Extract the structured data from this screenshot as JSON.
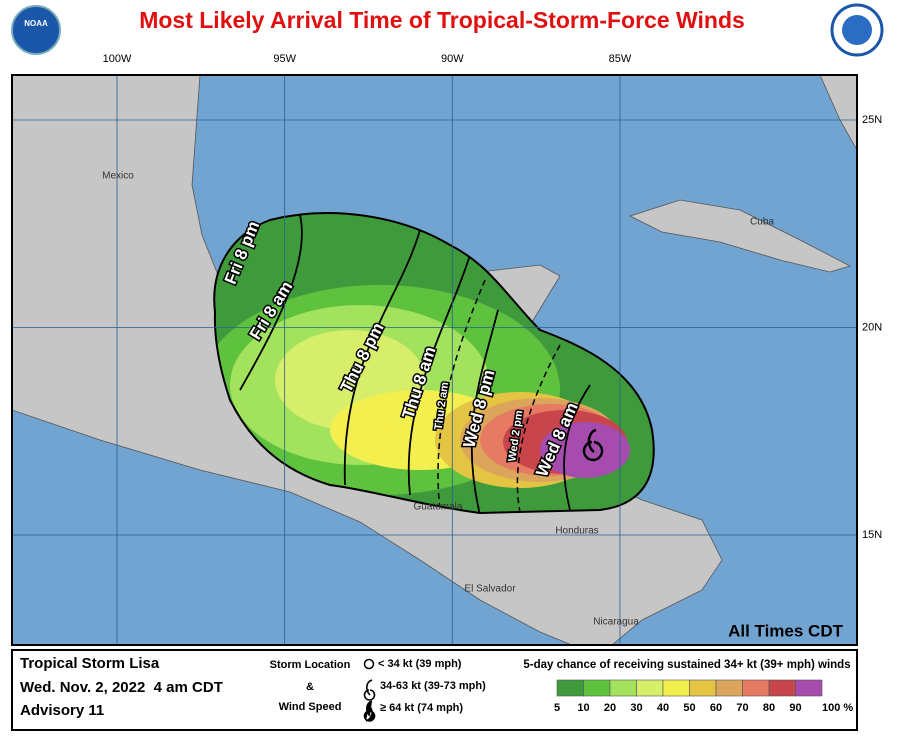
{
  "title": "Most Likely Arrival Time of Tropical-Storm-Force Winds",
  "logos": {
    "noaa": "NOAA"
  },
  "lon_ticks": [
    {
      "value": -100,
      "label": "100W"
    },
    {
      "value": -95,
      "label": "95W"
    },
    {
      "value": -90,
      "label": "90W"
    },
    {
      "value": -85,
      "label": "85W"
    }
  ],
  "lat_ticks": [
    {
      "value": 25,
      "label": "25N"
    },
    {
      "value": 20,
      "label": "20N"
    },
    {
      "value": 15,
      "label": "15N"
    }
  ],
  "places": [
    "Mexico",
    "Cuba",
    "Guatemala",
    "Honduras",
    "El Salvador",
    "Nicaragua"
  ],
  "arrival_times": [
    "Fri 8 pm",
    "Fri 8 am",
    "Thu 8 pm",
    "Thu 8 am",
    "Thu 2 am",
    "Wed 8 pm",
    "Wed 2 pm",
    "Wed 8 am"
  ],
  "times_note": "All Times CDT",
  "storm": {
    "name": "Tropical Storm Lisa",
    "issued": "Wed. Nov. 2, 2022  4 am CDT",
    "advisory": "Advisory 11"
  },
  "symbol_legend": {
    "title_lines": [
      "Storm Location",
      "&",
      "Wind Speed"
    ],
    "items": [
      "< 34 kt (39 mph)",
      "34-63 kt (39-73 mph)",
      "≥ 64 kt (74 mph)"
    ]
  },
  "probability_scale": {
    "title": "5-day chance of receiving sustained 34+ kt (39+ mph) winds",
    "colors": [
      "#3f9a3c",
      "#5fc23f",
      "#a2e25c",
      "#d6ee6a",
      "#f3ef4f",
      "#e4c543",
      "#dca55c",
      "#e67a62",
      "#c9454c",
      "#a64cae"
    ],
    "ticks": [
      5,
      10,
      20,
      30,
      40,
      50,
      60,
      70,
      80,
      90,
      {
        "value": 100,
        "label": "100 %"
      }
    ]
  }
}
